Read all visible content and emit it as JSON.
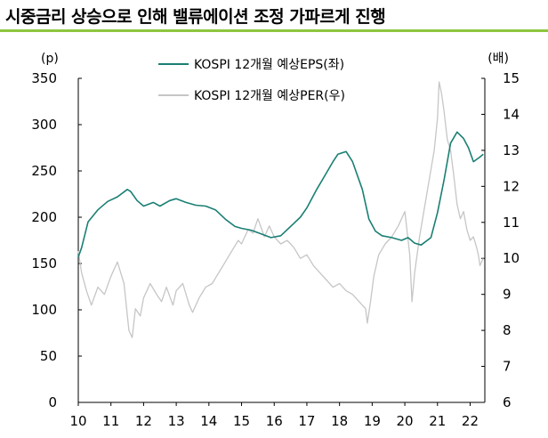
{
  "page": {
    "title": "시중금리 상승으로 인해 밸류에이션 조정 가파르게 진행"
  },
  "colors": {
    "eps": "#1a7f74",
    "per": "#c6c6c6",
    "rule": "#8dc63f",
    "axis": "#000000"
  },
  "chart_data": {
    "type": "line",
    "title": "",
    "xlabel": "",
    "left_unit": "(p)",
    "right_unit": "(배)",
    "xlim": [
      2010,
      2022.45
    ],
    "ylim_left": [
      0,
      350
    ],
    "ylim_right": [
      6,
      15
    ],
    "x_ticks": [
      2010,
      2011,
      2012,
      2013,
      2014,
      2015,
      2016,
      2017,
      2018,
      2019,
      2020,
      2021,
      2022
    ],
    "x_tick_labels": [
      "10",
      "11",
      "12",
      "13",
      "14",
      "15",
      "16",
      "17",
      "18",
      "19",
      "20",
      "21",
      "22"
    ],
    "left_ticks": [
      0,
      50,
      100,
      150,
      200,
      250,
      300,
      350
    ],
    "right_ticks": [
      6,
      7,
      8,
      9,
      10,
      11,
      12,
      13,
      14,
      15
    ],
    "legend": {
      "position": "top-center"
    },
    "series": [
      {
        "name": "KOSPI 12개월 예상EPS(좌)",
        "axis": "left",
        "color": "#1a7f74",
        "x": [
          2010.0,
          2010.1,
          2010.3,
          2010.6,
          2010.9,
          2011.2,
          2011.5,
          2011.6,
          2011.8,
          2012.0,
          2012.3,
          2012.5,
          2012.8,
          2013.0,
          2013.3,
          2013.6,
          2013.9,
          2014.2,
          2014.5,
          2014.8,
          2015.0,
          2015.3,
          2015.6,
          2015.9,
          2016.2,
          2016.5,
          2016.8,
          2017.0,
          2017.3,
          2017.6,
          2017.8,
          2017.95,
          2018.2,
          2018.4,
          2018.7,
          2018.9,
          2019.1,
          2019.3,
          2019.6,
          2019.9,
          2020.1,
          2020.3,
          2020.5,
          2020.8,
          2021.0,
          2021.2,
          2021.4,
          2021.6,
          2021.8,
          2021.95,
          2022.1,
          2022.3,
          2022.4
        ],
        "values": [
          157,
          167,
          195,
          208,
          217,
          222,
          230,
          228,
          218,
          212,
          216,
          212,
          218,
          220,
          216,
          213,
          212,
          208,
          198,
          190,
          188,
          186,
          182,
          178,
          180,
          190,
          200,
          210,
          230,
          248,
          260,
          268,
          271,
          260,
          230,
          198,
          185,
          180,
          178,
          175,
          178,
          172,
          170,
          178,
          205,
          240,
          280,
          292,
          285,
          275,
          260,
          265,
          268
        ]
      },
      {
        "name": "KOSPI 12개월 예상PER(우)",
        "axis": "right",
        "color": "#c6c6c6",
        "x": [
          2010.0,
          2010.1,
          2010.25,
          2010.4,
          2010.6,
          2010.8,
          2011.0,
          2011.2,
          2011.4,
          2011.55,
          2011.65,
          2011.75,
          2011.9,
          2012.0,
          2012.2,
          2012.4,
          2012.55,
          2012.7,
          2012.9,
          2013.0,
          2013.2,
          2013.4,
          2013.5,
          2013.7,
          2013.9,
          2014.1,
          2014.3,
          2014.5,
          2014.7,
          2014.9,
          2015.0,
          2015.2,
          2015.35,
          2015.5,
          2015.7,
          2015.85,
          2016.0,
          2016.2,
          2016.4,
          2016.6,
          2016.8,
          2017.0,
          2017.2,
          2017.4,
          2017.6,
          2017.8,
          2018.0,
          2018.2,
          2018.4,
          2018.6,
          2018.8,
          2018.85,
          2018.95,
          2019.05,
          2019.2,
          2019.4,
          2019.6,
          2019.8,
          2020.0,
          2020.15,
          2020.22,
          2020.3,
          2020.45,
          2020.6,
          2020.75,
          2020.9,
          2021.0,
          2021.05,
          2021.12,
          2021.2,
          2021.3,
          2021.4,
          2021.5,
          2021.6,
          2021.7,
          2021.8,
          2021.9,
          2022.0,
          2022.1,
          2022.2,
          2022.25,
          2022.3,
          2022.4
        ],
        "values": [
          10.2,
          9.6,
          9.1,
          8.7,
          9.2,
          9.0,
          9.5,
          9.9,
          9.3,
          8.0,
          7.8,
          8.6,
          8.4,
          8.9,
          9.3,
          9.0,
          8.8,
          9.2,
          8.7,
          9.1,
          9.3,
          8.7,
          8.5,
          8.9,
          9.2,
          9.3,
          9.6,
          9.9,
          10.2,
          10.5,
          10.4,
          10.8,
          10.7,
          11.1,
          10.6,
          10.9,
          10.6,
          10.4,
          10.5,
          10.3,
          10.0,
          10.1,
          9.8,
          9.6,
          9.4,
          9.2,
          9.3,
          9.1,
          9.0,
          8.8,
          8.6,
          8.2,
          8.8,
          9.5,
          10.1,
          10.4,
          10.6,
          10.9,
          11.3,
          10.1,
          8.8,
          9.6,
          10.6,
          11.4,
          12.2,
          13.0,
          13.9,
          14.9,
          14.6,
          14.1,
          13.3,
          13.0,
          12.3,
          11.5,
          11.1,
          11.3,
          10.8,
          10.5,
          10.6,
          10.3,
          10.1,
          9.8,
          10.0
        ]
      }
    ]
  }
}
